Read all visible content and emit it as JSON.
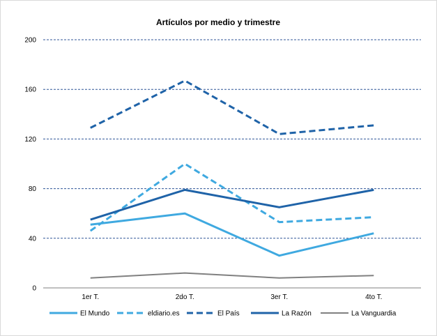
{
  "chart_data": {
    "type": "line",
    "title": "Artículos por medio y trimestre",
    "xlabel": "",
    "ylabel": "",
    "categories": [
      "1er T.",
      "2do T.",
      "3er T.",
      "4to T."
    ],
    "ylim": [
      0,
      200
    ],
    "yticks": [
      0,
      40,
      80,
      120,
      160,
      200
    ],
    "grid": "horizontal dashed",
    "legend_position": "bottom",
    "series": [
      {
        "name": "El Mundo",
        "values": [
          51,
          60,
          26,
          44
        ],
        "color": "#3fa9e0",
        "dash": "solid",
        "width": 3
      },
      {
        "name": "eldiario.es",
        "values": [
          46,
          100,
          53,
          57
        ],
        "color": "#3fa9e0",
        "dash": "dashed",
        "width": 3
      },
      {
        "name": "El País",
        "values": [
          129,
          167,
          124,
          131
        ],
        "color": "#1f63a8",
        "dash": "dashed",
        "width": 3
      },
      {
        "name": "La Razón",
        "values": [
          55,
          79,
          65,
          79
        ],
        "color": "#1f63a8",
        "dash": "solid",
        "width": 3
      },
      {
        "name": "La Vanguardia",
        "values": [
          8,
          12,
          8,
          10
        ],
        "color": "#808080",
        "dash": "solid",
        "width": 2
      }
    ]
  }
}
